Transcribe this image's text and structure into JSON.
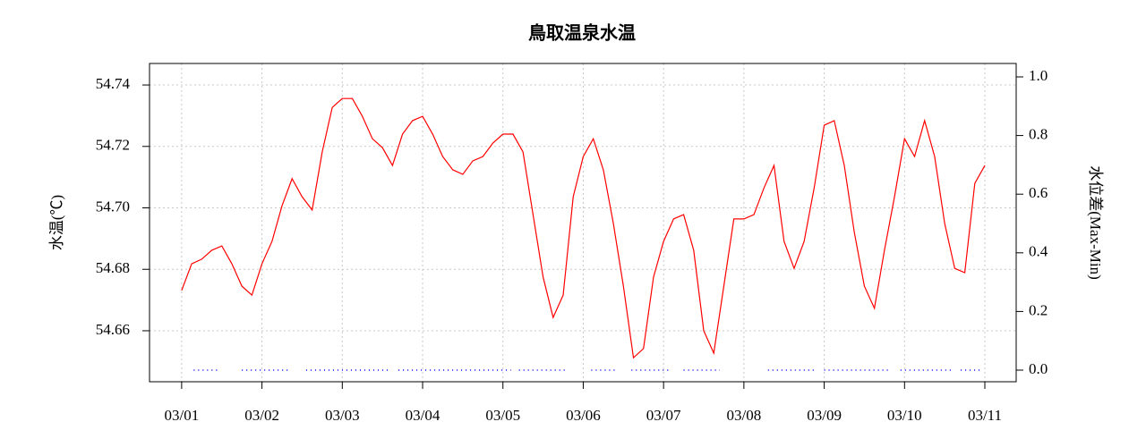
{
  "chart_data": {
    "type": "line",
    "title": "鳥取温泉水温",
    "y_label": "水温(℃)",
    "y2_label": "水位差(Max-Min)",
    "xlim": [
      -0.4,
      10.39
    ],
    "ylim": [
      54.6434,
      54.747
    ],
    "y2lim": [
      -0.0396,
      1.0457
    ],
    "xticks": [
      {
        "value": 0,
        "label": "03/01"
      },
      {
        "value": 1,
        "label": "03/02"
      },
      {
        "value": 2,
        "label": "03/03"
      },
      {
        "value": 3,
        "label": "03/04"
      },
      {
        "value": 4,
        "label": "03/05"
      },
      {
        "value": 5,
        "label": "03/06"
      },
      {
        "value": 6,
        "label": "03/07"
      },
      {
        "value": 7,
        "label": "03/08"
      },
      {
        "value": 8,
        "label": "03/09"
      },
      {
        "value": 9,
        "label": "03/10"
      },
      {
        "value": 10,
        "label": "03/11"
      }
    ],
    "yticks": [
      54.66,
      54.68,
      {
        "value": 54.7,
        "label": "54.70"
      },
      54.72,
      54.74
    ],
    "y2ticks": [
      {
        "value": 0,
        "label": "0.0"
      },
      {
        "value": 0.2,
        "label": "0.2"
      },
      {
        "value": 0.4,
        "label": "0.4"
      },
      {
        "value": 0.6,
        "label": "0.6"
      },
      {
        "value": 0.8,
        "label": "0.8"
      },
      {
        "value": 1,
        "label": "1.0"
      }
    ],
    "grid": true,
    "series": [
      {
        "color": "#ff0000",
        "axis": "y",
        "x": [
          0,
          0.125,
          0.25,
          0.375,
          0.5,
          0.625,
          0.75,
          0.875,
          1,
          1.125,
          1.25,
          1.375,
          1.5,
          1.625,
          1.75,
          1.875,
          2,
          2.125,
          2.25,
          2.375,
          2.5,
          2.625,
          2.75,
          2.875,
          3,
          3.125,
          3.25,
          3.375,
          3.5,
          3.625,
          3.75,
          3.875,
          4,
          4.125,
          4.25,
          4.375,
          4.5,
          4.625,
          4.75,
          4.875,
          5,
          5.125,
          5.25,
          5.375,
          5.5,
          5.625,
          5.75,
          5.875,
          6,
          6.125,
          6.25,
          6.375,
          6.5,
          6.625,
          6.75,
          6.875,
          7,
          7.125,
          7.25,
          7.375,
          7.5,
          7.625,
          7.75,
          7.875,
          8,
          8.125,
          8.25,
          8.375,
          8.5,
          8.625,
          8.75,
          8.875,
          9,
          9.125,
          9.25,
          9.375,
          9.5,
          9.625,
          9.75,
          9.875,
          10
        ],
        "values": [
          54.6731,
          54.6818,
          54.6833,
          54.6862,
          54.6876,
          54.6818,
          54.6745,
          54.6716,
          54.6818,
          54.6891,
          54.7007,
          54.7095,
          54.7036,
          54.6993,
          54.7182,
          54.7327,
          54.7356,
          54.7356,
          54.7298,
          54.7225,
          54.7196,
          54.7138,
          54.724,
          54.7284,
          54.7298,
          54.724,
          54.7167,
          54.7124,
          54.7109,
          54.7153,
          54.7167,
          54.7211,
          54.724,
          54.724,
          54.7182,
          54.6978,
          54.6775,
          54.6643,
          54.6716,
          54.7036,
          54.7167,
          54.7225,
          54.7124,
          54.6949,
          54.6745,
          54.6512,
          54.6542,
          54.6775,
          54.6891,
          54.6964,
          54.6978,
          54.6862,
          54.66,
          54.6527,
          54.6745,
          54.6964,
          54.6964,
          54.6978,
          54.7065,
          54.7138,
          54.6891,
          54.6803,
          54.6891,
          54.7065,
          54.7269,
          54.7284,
          54.7138,
          54.692,
          54.6745,
          54.6673,
          54.6862,
          54.7036,
          54.7225,
          54.7167,
          54.7284,
          54.7167,
          54.6949,
          54.6803,
          54.6789,
          54.708,
          54.7138
        ]
      },
      {
        "color": "#0000ff",
        "axis": "y2",
        "x": [
          0.15,
          0.45,
          0.6,
          0.75,
          1.35,
          1.45,
          1.55,
          2.6,
          2.65,
          2.7,
          4.1,
          4.15,
          4.2,
          4.8,
          4.95,
          5.1,
          5.4,
          5.5,
          5.6,
          6.1,
          6.2,
          6.25,
          6.7,
          7.0,
          7.3,
          7.9,
          7.95,
          8.0,
          8.8,
          8.9,
          8.95,
          9.6,
          9.65,
          9.7,
          9.95
        ],
        "values": [
          0,
          0,
          null,
          0,
          0,
          null,
          0,
          0,
          null,
          0,
          0,
          null,
          0,
          0,
          null,
          0,
          0,
          null,
          0,
          0,
          null,
          0,
          0,
          null,
          0,
          0,
          null,
          0,
          0,
          null,
          0,
          0,
          null,
          0,
          0
        ]
      }
    ]
  }
}
